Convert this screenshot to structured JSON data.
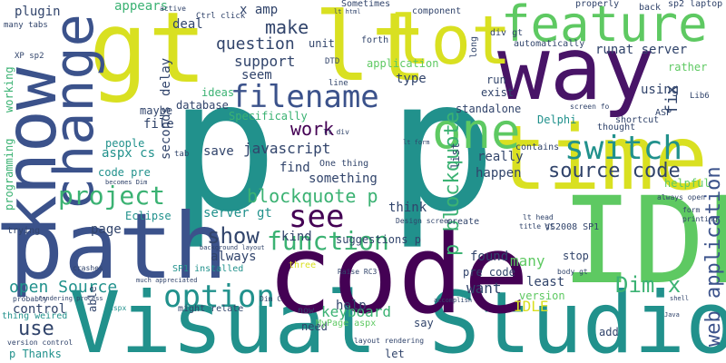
{
  "palette": {
    "yellow": "#d9e021",
    "lightgreen": "#5ec962",
    "green": "#3bb273",
    "teal": "#21918c",
    "blue": "#3b528b",
    "navy": "#31446b",
    "purple": "#440154",
    "darkpurple": "#481467"
  },
  "words": [
    {
      "text": "p p",
      "color": "#21918c"
    },
    {
      "text": "Visual Studio",
      "color": "#21918c"
    },
    {
      "text": "code",
      "color": "#440154"
    },
    {
      "text": "gt",
      "color": "#d9e021"
    },
    {
      "text": "lt",
      "color": "#d9e021"
    },
    {
      "text": "way",
      "color": "#481467"
    },
    {
      "text": "time",
      "color": "#d9e021"
    },
    {
      "text": "IDE",
      "color": "#5ec962"
    },
    {
      "text": "path",
      "color": "#3b528b"
    },
    {
      "text": "know",
      "color": "#3b528b"
    },
    {
      "text": "change",
      "color": "#3b528b"
    },
    {
      "text": "feature",
      "color": "#5ec962"
    },
    {
      "text": "lot",
      "color": "#d9e021"
    },
    {
      "text": "one",
      "color": "#5ec962"
    },
    {
      "text": "filename",
      "color": "#3b528b"
    },
    {
      "text": "switch",
      "color": "#21918c"
    },
    {
      "text": "source code",
      "color": "#31446b"
    },
    {
      "text": "project",
      "color": "#3bb273"
    },
    {
      "text": "see",
      "color": "#440154"
    },
    {
      "text": "option",
      "color": "#21918c"
    },
    {
      "text": "function",
      "color": "#3bb273"
    },
    {
      "text": "show",
      "color": "#31446b"
    },
    {
      "text": "use",
      "color": "#31446b"
    },
    {
      "text": "open Source",
      "color": "#21918c"
    },
    {
      "text": "web application",
      "color": "#3b528b"
    },
    {
      "text": "p blockquote",
      "color": "#3bb273"
    },
    {
      "text": "blockquote p",
      "color": "#3bb273"
    },
    {
      "text": "question",
      "color": "#31446b"
    },
    {
      "text": "make",
      "color": "#31446b"
    },
    {
      "text": "support",
      "color": "#31446b"
    },
    {
      "text": "javascript",
      "color": "#31446b"
    },
    {
      "text": "work",
      "color": "#440154"
    },
    {
      "text": "keyboard",
      "color": "#3bb273"
    },
    {
      "text": "Dim x",
      "color": "#3bb273"
    },
    {
      "text": "IDLE",
      "color": "#d9e021"
    },
    {
      "text": "runat server",
      "color": "#31446b"
    },
    {
      "text": "plugin",
      "color": "#31446b"
    },
    {
      "text": "appears",
      "color": "#3bb273"
    },
    {
      "text": "deal",
      "color": "#31446b"
    },
    {
      "text": "x amp",
      "color": "#31446b"
    },
    {
      "text": "application",
      "color": "#5ec962"
    },
    {
      "text": "ideas",
      "color": "#3bb273"
    },
    {
      "text": "database",
      "color": "#31446b"
    },
    {
      "text": "delay",
      "color": "#31446b"
    },
    {
      "text": "seconds",
      "color": "#31446b"
    },
    {
      "text": "seem",
      "color": "#31446b"
    },
    {
      "text": "type",
      "color": "#31446b"
    },
    {
      "text": "standalone",
      "color": "#31446b"
    },
    {
      "text": "Delphi",
      "color": "#21918c"
    },
    {
      "text": "fix",
      "color": "#31446b"
    },
    {
      "text": "using",
      "color": "#31446b"
    },
    {
      "text": "aspx cs",
      "color": "#21918c"
    },
    {
      "text": "file",
      "color": "#31446b"
    },
    {
      "text": "server gt",
      "color": "#21918c"
    },
    {
      "text": "find",
      "color": "#31446b"
    },
    {
      "text": "something",
      "color": "#31446b"
    },
    {
      "text": "think",
      "color": "#31446b"
    },
    {
      "text": "kind",
      "color": "#31446b"
    },
    {
      "text": "always",
      "color": "#31446b"
    },
    {
      "text": "page",
      "color": "#31446b"
    },
    {
      "text": "suggestions p",
      "color": "#31446b"
    },
    {
      "text": "found",
      "color": "#31446b"
    },
    {
      "text": "many",
      "color": "#5ec962"
    },
    {
      "text": "want",
      "color": "#31446b"
    },
    {
      "text": "least",
      "color": "#31446b"
    },
    {
      "text": "pre code",
      "color": "#31446b"
    },
    {
      "text": "help",
      "color": "#31446b"
    },
    {
      "text": "save",
      "color": "#31446b"
    },
    {
      "text": "Eclipse",
      "color": "#21918c"
    },
    {
      "text": "really",
      "color": "#31446b"
    },
    {
      "text": "happen",
      "color": "#31446b"
    },
    {
      "text": "working",
      "color": "#3bb273"
    },
    {
      "text": "programming",
      "color": "#3bb273"
    },
    {
      "text": "control",
      "color": "#31446b"
    },
    {
      "text": "Specifically",
      "color": "#3bb273"
    },
    {
      "text": "maybe",
      "color": "#31446b"
    },
    {
      "text": "people",
      "color": "#21918c"
    },
    {
      "text": "code pre",
      "color": "#21918c"
    },
    {
      "text": "One thing",
      "color": "#31446b"
    },
    {
      "text": "unit",
      "color": "#31446b"
    },
    {
      "text": "Sometimes",
      "color": "#31446b"
    },
    {
      "text": "forth",
      "color": "#31446b"
    },
    {
      "text": "run",
      "color": "#31446b"
    },
    {
      "text": "exist",
      "color": "#31446b"
    },
    {
      "text": "list",
      "color": "#31446b"
    },
    {
      "text": "contains",
      "color": "#31446b"
    },
    {
      "text": "create",
      "color": "#31446b"
    },
    {
      "text": "stop",
      "color": "#31446b"
    },
    {
      "text": "three",
      "color": "#d9e021"
    },
    {
      "text": "might relate",
      "color": "#31446b"
    },
    {
      "text": "add",
      "color": "#31446b"
    },
    {
      "text": "say",
      "color": "#31446b"
    },
    {
      "text": "need",
      "color": "#31446b"
    },
    {
      "text": "let",
      "color": "#31446b"
    },
    {
      "text": "now",
      "color": "#31446b"
    },
    {
      "text": "version",
      "color": "#5ec962"
    },
    {
      "text": "MyPage aspx",
      "color": "#5ec962"
    },
    {
      "text": "thought",
      "color": "#31446b"
    },
    {
      "text": "shortcut",
      "color": "#31446b"
    },
    {
      "text": "ASP",
      "color": "#31446b"
    },
    {
      "text": "helpful",
      "color": "#5ec962"
    },
    {
      "text": "rather",
      "color": "#5ec962"
    },
    {
      "text": "back",
      "color": "#31446b"
    },
    {
      "text": "sp2 laptop",
      "color": "#31446b"
    },
    {
      "text": "properly",
      "color": "#31446b"
    },
    {
      "text": "automatically",
      "color": "#31446b"
    },
    {
      "text": "component",
      "color": "#31446b"
    },
    {
      "text": "long",
      "color": "#31446b"
    },
    {
      "text": "div gt",
      "color": "#31446b"
    },
    {
      "text": "VS2008 SP1",
      "color": "#31446b"
    },
    {
      "text": "SP1 installed",
      "color": "#21918c"
    },
    {
      "text": "p Thanks",
      "color": "#21918c"
    },
    {
      "text": "thing weired",
      "color": "#21918c"
    },
    {
      "text": "version control",
      "color": "#31446b"
    },
    {
      "text": "many tabs",
      "color": "#31446b"
    },
    {
      "text": "XP sp2",
      "color": "#31446b"
    },
    {
      "text": "Ctrl click",
      "color": "#31446b"
    },
    {
      "text": "active",
      "color": "#31446b"
    },
    {
      "text": "always open",
      "color": "#31446b"
    },
    {
      "text": "form",
      "color": "#31446b"
    },
    {
      "text": "Lib6",
      "color": "#31446b"
    },
    {
      "text": "DTD",
      "color": "#31446b"
    },
    {
      "text": "line",
      "color": "#31446b"
    },
    {
      "text": "Design screen",
      "color": "#31446b"
    },
    {
      "text": "Raise RC3",
      "color": "#31446b"
    },
    {
      "text": "body gt",
      "color": "#31446b"
    },
    {
      "text": "title gt",
      "color": "#31446b"
    },
    {
      "text": "lt head",
      "color": "#31446b"
    },
    {
      "text": "lt div",
      "color": "#31446b"
    },
    {
      "text": "crashes",
      "color": "#31446b"
    },
    {
      "text": "probably",
      "color": "#31446b"
    },
    {
      "text": "aspx page",
      "color": "#21918c"
    },
    {
      "text": "able",
      "color": "#31446b"
    },
    {
      "text": "trying",
      "color": "#31446b"
    },
    {
      "text": "background layout",
      "color": "#31446b"
    },
    {
      "text": "tab",
      "color": "#31446b"
    },
    {
      "text": "becomes Dim",
      "color": "#31446b"
    },
    {
      "text": "much appreciated",
      "color": "#31446b"
    },
    {
      "text": "rendering process",
      "color": "#31446b"
    },
    {
      "text": "layout rendering",
      "color": "#31446b"
    },
    {
      "text": "printing",
      "color": "#31446b"
    },
    {
      "text": "screen fo",
      "color": "#31446b"
    },
    {
      "text": "lt form",
      "color": "#31446b"
    },
    {
      "text": "lt html",
      "color": "#31446b"
    },
    {
      "text": "Dim C",
      "color": "#31446b"
    },
    {
      "text": "accomplish",
      "color": "#31446b"
    },
    {
      "text": "Java",
      "color": "#31446b"
    },
    {
      "text": "shell",
      "color": "#31446b"
    }
  ]
}
